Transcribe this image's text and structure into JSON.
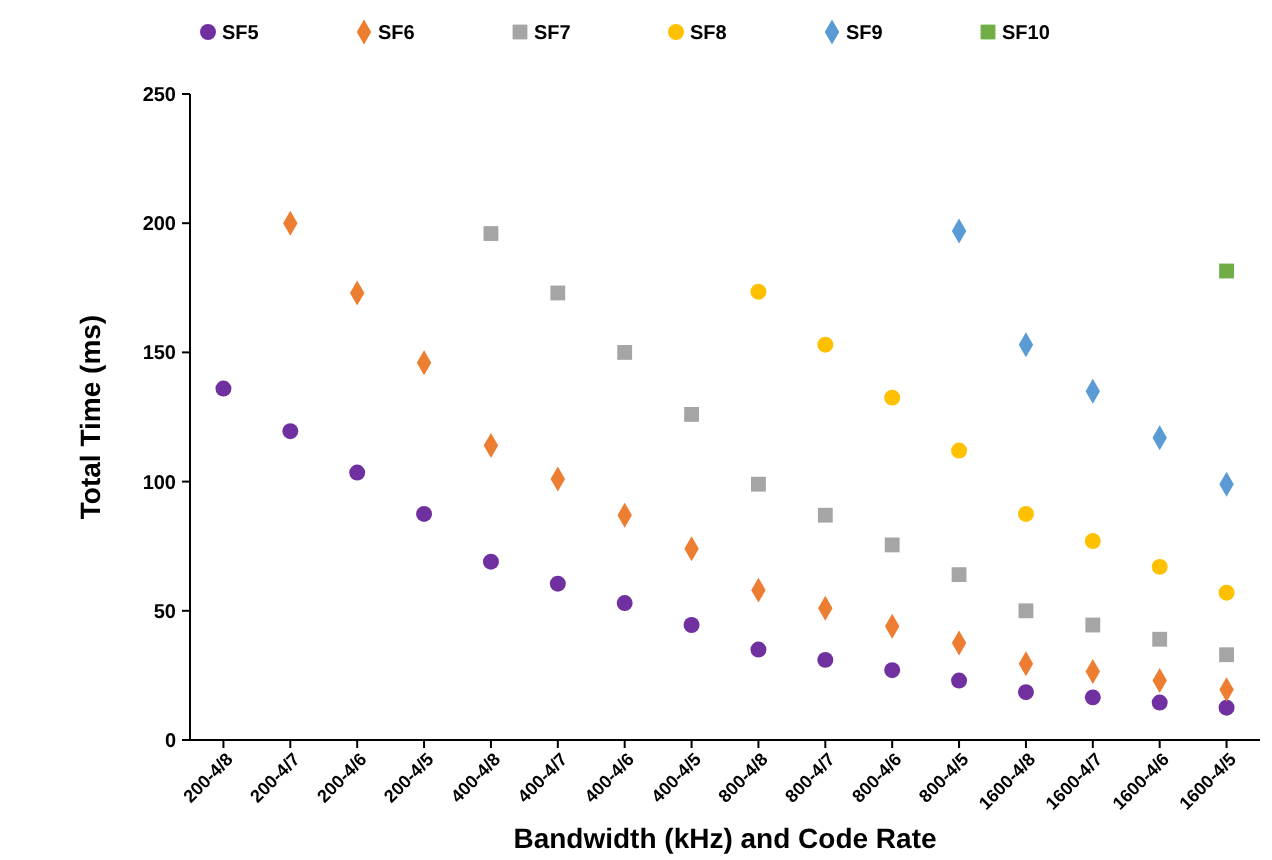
{
  "chart_data": {
    "type": "scatter",
    "xlabel": "Bandwidth (kHz) and Code Rate",
    "ylabel": "Total Time  (ms)",
    "categories": [
      "200-4/8",
      "200-4/7",
      "200-4/6",
      "200-4/5",
      "400-4/8",
      "400-4/7",
      "400-4/6",
      "400-4/5",
      "800-4/8",
      "800-4/7",
      "800-4/6",
      "800-4/5",
      "1600-4/8",
      "1600-4/7",
      "1600-4/6",
      "1600-4/5"
    ],
    "ylim": [
      0,
      250
    ],
    "yticks": [
      0,
      50,
      100,
      150,
      200,
      250
    ],
    "grid": false,
    "legend": "top",
    "series": [
      {
        "name": "SF5",
        "color": "#7030a0",
        "marker": "circle",
        "values": [
          136,
          119.5,
          103.5,
          87.5,
          69,
          60.5,
          53,
          44.5,
          35,
          31,
          27,
          23,
          18.5,
          16.5,
          14.5,
          12.5
        ]
      },
      {
        "name": "SF6",
        "color": "#ed7d31",
        "marker": "diamond",
        "values": [
          null,
          200,
          173,
          146,
          114,
          101,
          87,
          74,
          58,
          51,
          44,
          37.5,
          29.5,
          26.5,
          23,
          19.5
        ]
      },
      {
        "name": "SF7",
        "color": "#a5a5a5",
        "marker": "square",
        "values": [
          null,
          null,
          null,
          null,
          196,
          173,
          150,
          126,
          99,
          87,
          75.5,
          64,
          50,
          44.5,
          39,
          33
        ]
      },
      {
        "name": "SF8",
        "color": "#ffc000",
        "marker": "circle",
        "values": [
          null,
          null,
          null,
          null,
          null,
          null,
          null,
          null,
          173.5,
          153,
          132.5,
          112,
          87.5,
          77,
          67,
          57
        ]
      },
      {
        "name": "SF9",
        "color": "#5b9bd5",
        "marker": "diamond",
        "values": [
          null,
          null,
          null,
          null,
          null,
          null,
          null,
          null,
          null,
          null,
          null,
          197,
          153,
          135,
          117,
          99
        ]
      },
      {
        "name": "SF10",
        "color": "#70ad47",
        "marker": "square",
        "values": [
          null,
          null,
          null,
          null,
          null,
          null,
          null,
          null,
          null,
          null,
          null,
          null,
          null,
          null,
          null,
          181.5
        ]
      }
    ]
  }
}
